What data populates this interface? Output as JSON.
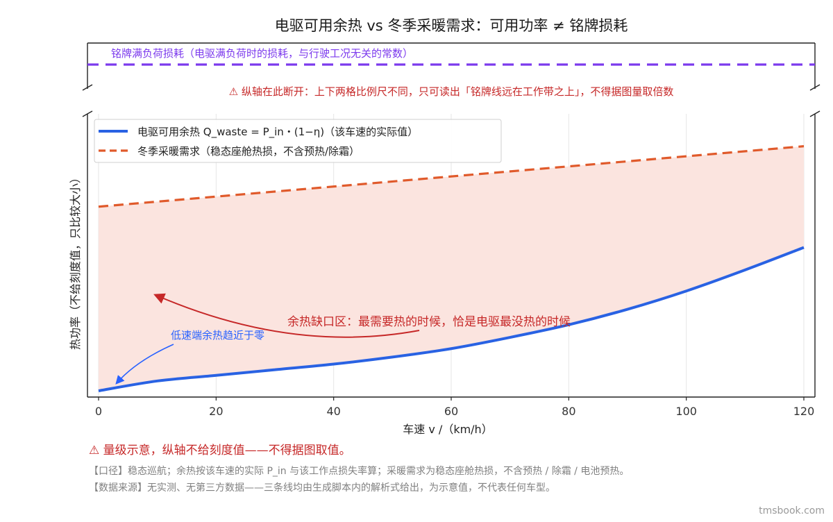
{
  "chart_data": {
    "type": "line",
    "title": "电驱可用余热 vs 冬季采暖需求：可用功率 ≠ 铭牌损耗",
    "xlabel": "车速 v /（km/h）",
    "ylabel": "热功率（不给刻度值，只比较大小）",
    "xlim": [
      0,
      120
    ],
    "xticks": [
      "0",
      "20",
      "40",
      "60",
      "80",
      "100",
      "120"
    ],
    "y_ticks_shown": false,
    "grid": "vertical",
    "broken_y_axis": true,
    "legend_position": "top-left",
    "series": [
      {
        "name": "电驱可用余热  Q_waste = P_in・(1−η)（该车速的实际值）",
        "style": "solid",
        "color": "#2962e3",
        "x": [
          0,
          10,
          20,
          30,
          40,
          50,
          60,
          70,
          80,
          90,
          100,
          110,
          120
        ],
        "y": [
          0.0,
          0.07,
          0.11,
          0.15,
          0.19,
          0.24,
          0.3,
          0.38,
          0.47,
          0.58,
          0.71,
          0.86,
          1.02
        ]
      },
      {
        "name": "冬季采暖需求（稳态座舱热损，不含预热/除霜）",
        "style": "dashed",
        "color": "#e05a2b",
        "x": [
          0,
          120
        ],
        "y": [
          1.31,
          1.74
        ]
      },
      {
        "name": "铭牌满负荷损耗（电驱满负荷时的损耗，与行驶工况无关的常数）",
        "style": "dashed",
        "color": "#7c3aed",
        "panel": "upper",
        "constant": true
      }
    ],
    "shaded_gap": {
      "between": [
        "电驱可用余热",
        "冬季采暖需求"
      ],
      "color": "#fbe4df"
    },
    "break_note": "⚠ 纵轴在此断开：上下两格比例尺不同，只可读出「铭牌线远在工作带之上」，不得据图量取倍数",
    "annotations": [
      {
        "text": "余热缺口区：最需要热的时候，恰是电驱最没热的时候",
        "x": 32,
        "y": 0.53,
        "arrow_to": [
          10,
          0.72
        ]
      },
      {
        "text": "低速端余热趋近于零",
        "x": 12,
        "y": 0.41,
        "arrow_to": [
          3,
          0.05
        ]
      }
    ]
  },
  "footer": {
    "warning": "⚠ 量级示意，纵轴不给刻度值——不得据图取值。",
    "caliber": "【口径】稳态巡航；余热按该车速的实际 P_in 与该工作点损失率算；采暖需求为稳态座舱热损，不含预热 / 除霜 / 电池预热。",
    "source": "【数据来源】无实测、无第三方数据——三条线均由生成脚本内的解析式给出，为示意值，不代表任何车型。"
  },
  "credit": "tmsbook.com"
}
